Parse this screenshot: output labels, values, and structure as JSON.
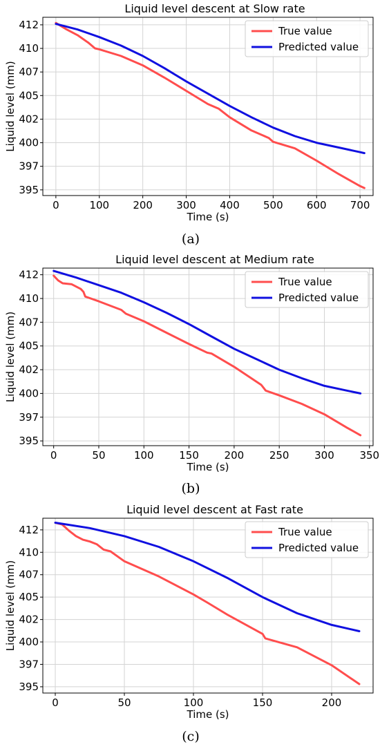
{
  "chart_data": [
    {
      "type": "line",
      "title": "Liquid level descent at Slow rate",
      "xlabel": "Time (s)",
      "ylabel": "Liquid level (mm)",
      "caption": "(a)",
      "xlim": [
        -30,
        730
      ],
      "ylim": [
        394.4,
        413.3
      ],
      "xticks": [
        0,
        100,
        200,
        300,
        400,
        500,
        600,
        700
      ],
      "yticks": [
        395,
        397,
        400,
        402,
        405,
        407,
        410,
        412
      ],
      "ytick_values": [
        395,
        397.5,
        400,
        402.5,
        405,
        407.5,
        410,
        412.5
      ],
      "grid": true,
      "legend": "top-right",
      "series": [
        {
          "name": "True value",
          "color": "#ff4d4d",
          "x": [
            0,
            25,
            50,
            75,
            90,
            100,
            150,
            200,
            250,
            300,
            350,
            375,
            400,
            450,
            490,
            500,
            550,
            600,
            650,
            700,
            710
          ],
          "y": [
            412.7,
            412.0,
            411.4,
            410.6,
            410.0,
            409.9,
            409.2,
            408.2,
            406.9,
            405.5,
            404.1,
            403.6,
            402.7,
            401.3,
            400.5,
            400.1,
            399.4,
            398.1,
            396.7,
            395.4,
            395.2
          ]
        },
        {
          "name": "Predicted value",
          "color": "#1010e0",
          "x": [
            0,
            50,
            100,
            150,
            200,
            250,
            300,
            350,
            400,
            450,
            500,
            550,
            600,
            650,
            700,
            710
          ],
          "y": [
            412.6,
            412.0,
            411.2,
            410.3,
            409.2,
            407.9,
            406.5,
            405.2,
            403.9,
            402.7,
            401.6,
            400.7,
            400.0,
            399.5,
            399.0,
            398.9
          ]
        }
      ]
    },
    {
      "type": "line",
      "title": "Liquid level descent at Medium rate",
      "xlabel": "Time (s)",
      "ylabel": "Liquid level (mm)",
      "caption": "(b)",
      "xlim": [
        -12,
        354
      ],
      "ylim": [
        394.5,
        413.2
      ],
      "xticks": [
        0,
        50,
        100,
        150,
        200,
        250,
        300,
        350
      ],
      "yticks": [
        395,
        397,
        400,
        402,
        405,
        407,
        410,
        412
      ],
      "ytick_values": [
        395,
        397.5,
        400,
        402.5,
        405,
        407.5,
        410,
        412.5
      ],
      "grid": true,
      "legend": "top-right",
      "series": [
        {
          "name": "True value",
          "color": "#ff4d4d",
          "x": [
            0,
            5,
            10,
            20,
            30,
            33,
            35,
            50,
            75,
            80,
            100,
            125,
            150,
            170,
            175,
            200,
            230,
            235,
            250,
            275,
            300,
            325,
            340
          ],
          "y": [
            412.4,
            411.9,
            411.6,
            411.5,
            411.0,
            410.7,
            410.2,
            409.7,
            408.8,
            408.4,
            407.6,
            406.4,
            405.2,
            404.3,
            404.2,
            402.8,
            400.9,
            400.3,
            399.8,
            398.9,
            397.8,
            396.4,
            395.6
          ]
        },
        {
          "name": "Predicted value",
          "color": "#1010e0",
          "x": [
            0,
            25,
            50,
            75,
            100,
            125,
            150,
            175,
            200,
            225,
            250,
            275,
            300,
            325,
            340
          ],
          "y": [
            412.9,
            412.2,
            411.4,
            410.6,
            409.6,
            408.5,
            407.3,
            406.0,
            404.7,
            403.6,
            402.5,
            401.6,
            400.8,
            400.3,
            400.0
          ]
        }
      ]
    },
    {
      "type": "line",
      "title": "Liquid level descent at Fast rate",
      "xlabel": "Time (s)",
      "ylabel": "Liquid level (mm)",
      "caption": "(c)",
      "xlim": [
        -9,
        230
      ],
      "ylim": [
        394.3,
        413.8
      ],
      "xticks": [
        0,
        50,
        100,
        150,
        200
      ],
      "yticks": [
        395,
        397,
        400,
        402,
        405,
        407,
        410,
        412
      ],
      "ytick_values": [
        395,
        397.5,
        400,
        402.5,
        405,
        407.5,
        410,
        412.5
      ],
      "grid": true,
      "legend": "top-right",
      "series": [
        {
          "name": "True value",
          "color": "#ff4d4d",
          "x": [
            0,
            5,
            10,
            15,
            20,
            25,
            30,
            35,
            40,
            50,
            75,
            100,
            110,
            125,
            150,
            152,
            175,
            200,
            220
          ],
          "y": [
            413.3,
            413.1,
            412.4,
            411.8,
            411.4,
            411.2,
            410.9,
            410.3,
            410.1,
            409.0,
            407.3,
            405.3,
            404.4,
            403.0,
            400.9,
            400.4,
            399.4,
            397.4,
            395.3
          ]
        },
        {
          "name": "Predicted value",
          "color": "#1010e0",
          "x": [
            0,
            25,
            50,
            75,
            100,
            125,
            150,
            175,
            200,
            220
          ],
          "y": [
            413.3,
            412.7,
            411.8,
            410.6,
            409.0,
            407.1,
            405.0,
            403.2,
            401.9,
            401.2
          ]
        }
      ]
    }
  ]
}
